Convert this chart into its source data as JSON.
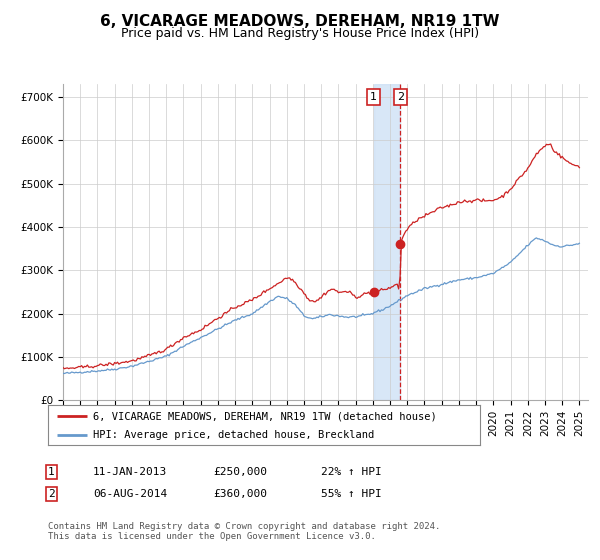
{
  "title": "6, VICARAGE MEADOWS, DEREHAM, NR19 1TW",
  "subtitle": "Price paid vs. HM Land Registry's House Price Index (HPI)",
  "ylim": [
    0,
    730000
  ],
  "xlim_start": 1995.0,
  "xlim_end": 2025.5,
  "yticks": [
    0,
    100000,
    200000,
    300000,
    400000,
    500000,
    600000,
    700000
  ],
  "ytick_labels": [
    "£0",
    "£100K",
    "£200K",
    "£300K",
    "£400K",
    "£500K",
    "£600K",
    "£700K"
  ],
  "hpi_color": "#6699cc",
  "price_color": "#cc2222",
  "bg_color": "#ffffff",
  "grid_color": "#cccccc",
  "transaction1_date": 2013.04,
  "transaction1_price": 250000,
  "transaction2_date": 2014.59,
  "transaction2_price": 360000,
  "shade_x1": 2013.04,
  "shade_x2": 2014.59,
  "dashed_line_x": 2014.59,
  "legend_hpi_label": "HPI: Average price, detached house, Breckland",
  "legend_price_label": "6, VICARAGE MEADOWS, DEREHAM, NR19 1TW (detached house)",
  "annotation1_label": "1",
  "annotation1_date_str": "11-JAN-2013",
  "annotation1_price_str": "£250,000",
  "annotation1_hpi_str": "22% ↑ HPI",
  "annotation2_label": "2",
  "annotation2_date_str": "06-AUG-2014",
  "annotation2_price_str": "£360,000",
  "annotation2_hpi_str": "55% ↑ HPI",
  "footnote": "Contains HM Land Registry data © Crown copyright and database right 2024.\nThis data is licensed under the Open Government Licence v3.0.",
  "title_fontsize": 11,
  "subtitle_fontsize": 9,
  "tick_fontsize": 7.5,
  "legend_fontsize": 7.5,
  "annotation_fontsize": 8,
  "footnote_fontsize": 6.5
}
